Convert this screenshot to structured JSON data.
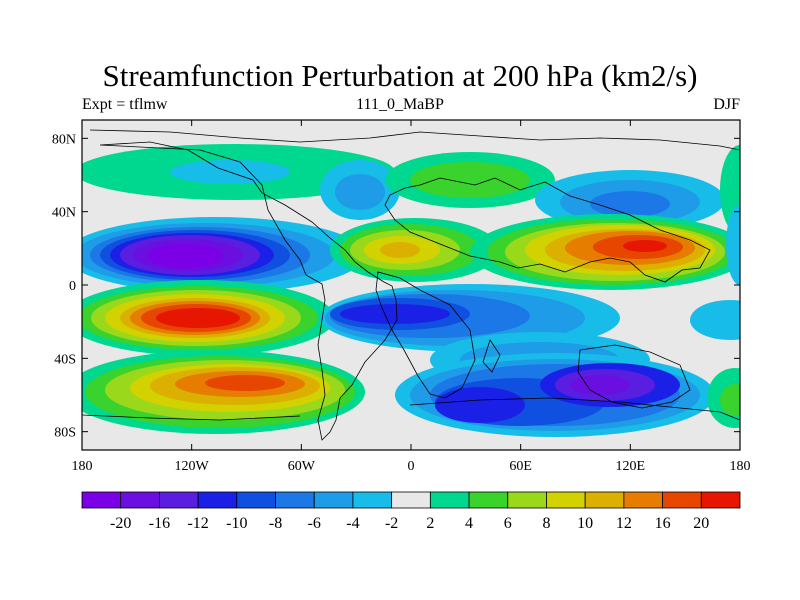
{
  "title": "Streamfunction Perturbation at 200 hPa (km2/s)",
  "subtitle_left": "Expt = tflmw",
  "subtitle_center": "111_0_MaBP",
  "subtitle_right": "DJF",
  "map": {
    "projection": "cylindrical-equidistant",
    "lon_range": [
      -180,
      180
    ],
    "lat_range": [
      -90,
      90
    ],
    "y_ticks": [
      "80N",
      "40N",
      "0",
      "40S",
      "80S"
    ],
    "x_ticks": [
      "180",
      "120W",
      "60W",
      "0",
      "60E",
      "120E",
      "180"
    ],
    "coastlines": true
  },
  "colorbar": {
    "colors": [
      "#7b00e6",
      "#6a0fe0",
      "#5a1ee0",
      "#1a20e6",
      "#1050e0",
      "#1c78e6",
      "#1e9ce8",
      "#18bce8",
      "#e8e8e8",
      "#00d890",
      "#3ad22c",
      "#9ad81c",
      "#d2d200",
      "#dcb000",
      "#e67c00",
      "#e64600",
      "#e61600"
    ],
    "labels": [
      "-20",
      "-16",
      "-12",
      "-10",
      "-8",
      "-6",
      "-4",
      "-2",
      "2",
      "4",
      "6",
      "8",
      "10",
      "12",
      "16",
      "20"
    ]
  },
  "chart_data": {
    "type": "contour map",
    "field": "streamfunction perturbation",
    "level": "200 hPa",
    "units": "km2/s",
    "contour_levels": [
      -20,
      -16,
      -12,
      -10,
      -8,
      -6,
      -4,
      -2,
      2,
      4,
      6,
      8,
      10,
      12,
      16,
      20
    ],
    "features": [
      {
        "center_lon": -100,
        "center_lat": 16,
        "value": -20
      },
      {
        "center_lon": -100,
        "center_lat": -24,
        "value": 20
      },
      {
        "center_lon": -90,
        "center_lat": -57,
        "value": 12
      },
      {
        "center_lon": -10,
        "center_lat": -18,
        "value": -12
      },
      {
        "center_lon": 120,
        "center_lat": 18,
        "value": 16
      },
      {
        "center_lon": 5,
        "center_lat": 12,
        "value": 10
      },
      {
        "center_lon": 110,
        "center_lat": -57,
        "value": -20
      },
      {
        "center_lon": 40,
        "center_lat": -70,
        "value": -12
      },
      {
        "center_lon": 120,
        "center_lat": 45,
        "value": -8
      },
      {
        "center_lon": 10,
        "center_lat": 65,
        "value": 4
      }
    ]
  }
}
